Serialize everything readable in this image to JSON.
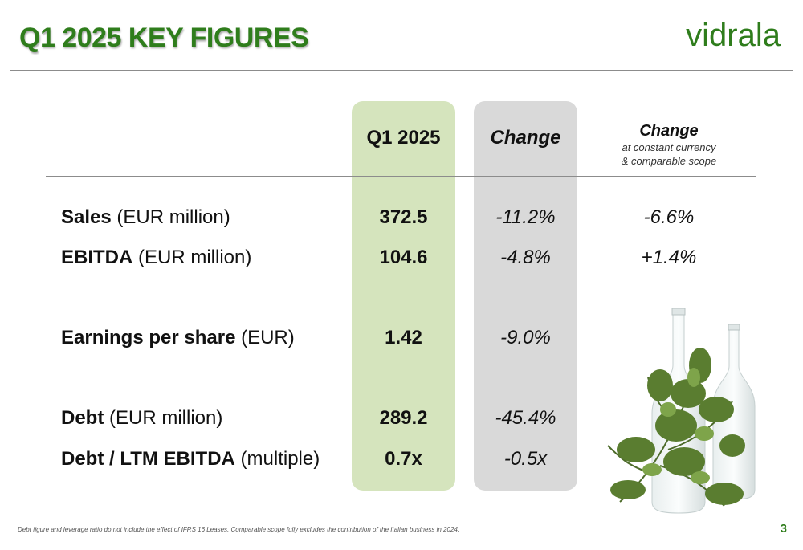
{
  "header": {
    "title": "Q1 2025 KEY FIGURES",
    "logo_text": "vidrala",
    "brand_color": "#2f7d1c"
  },
  "table": {
    "columns": {
      "q1": "Q1 2025",
      "change": "Change",
      "change_cc_title": "Change",
      "change_cc_sub1": "at constant currency",
      "change_cc_sub2": "& comparable scope"
    },
    "rows": [
      {
        "label_bold": "Sales",
        "label_rest": " (EUR million)",
        "q1": "372.5",
        "change": "-11.2%",
        "change_cc": "-6.6%"
      },
      {
        "label_bold": "EBITDA",
        "label_rest": " (EUR million)",
        "q1": "104.6",
        "change": "-4.8%",
        "change_cc": "+1.4%"
      },
      {
        "label_bold": "Earnings per share",
        "label_rest": " (EUR)",
        "q1": "1.42",
        "change": "-9.0%",
        "change_cc": ""
      },
      {
        "label_bold": "Debt",
        "label_rest": " (EUR million)",
        "q1": "289.2",
        "change": "-45.4%",
        "change_cc": ""
      },
      {
        "label_bold": "Debt / LTM EBITDA",
        "label_rest": " (multiple)",
        "q1": "0.7x",
        "change": "-0.5x",
        "change_cc": ""
      }
    ],
    "column_colors": {
      "q1": "#d5e4bd",
      "change": "#d9d9d9"
    }
  },
  "footer": {
    "footnote": "Debt figure and leverage ratio do not include the effect of IFRS 16 Leases. Comparable scope fully excludes the contribution of the Italian business in 2024.",
    "page_number": "3"
  }
}
